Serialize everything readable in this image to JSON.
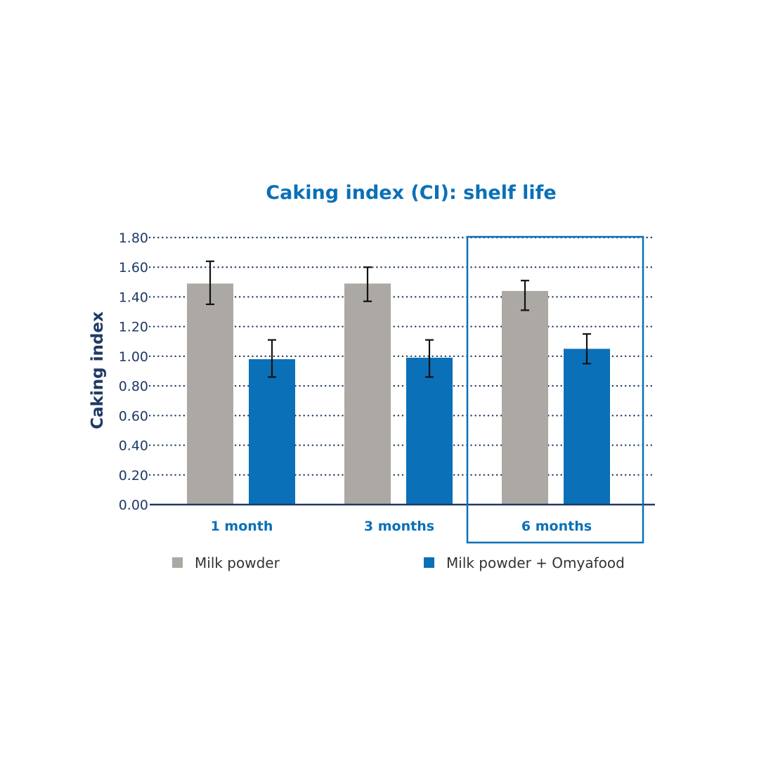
{
  "chart_data": {
    "type": "bar",
    "title": "Caking index (CI): shelf life",
    "ylabel": "Caking index",
    "xlabel": "",
    "ylim": [
      0,
      1.8
    ],
    "yticks": [
      "0.00",
      "0.20",
      "0.40",
      "0.60",
      "0.80",
      "1.00",
      "1.20",
      "1.40",
      "1.60",
      "1.80"
    ],
    "categories": [
      "1 month",
      "3 months",
      "6 months"
    ],
    "series": [
      {
        "name": "Milk powder",
        "color": "#aca8a3",
        "values": [
          1.49,
          1.49,
          1.44
        ],
        "error_low": [
          1.35,
          1.37,
          1.31
        ],
        "error_high": [
          1.64,
          1.6,
          1.51
        ]
      },
      {
        "name": "Milk powder + Omyafood",
        "color": "#0a70b8",
        "values": [
          0.98,
          0.99,
          1.05
        ],
        "error_low": [
          0.86,
          0.86,
          0.95
        ],
        "error_high": [
          1.11,
          1.11,
          1.15
        ]
      }
    ],
    "grid": true,
    "grid_style": "dotted",
    "highlighted_category": "6 months",
    "legend_position": "bottom",
    "axis_color": "#1f3a64"
  }
}
